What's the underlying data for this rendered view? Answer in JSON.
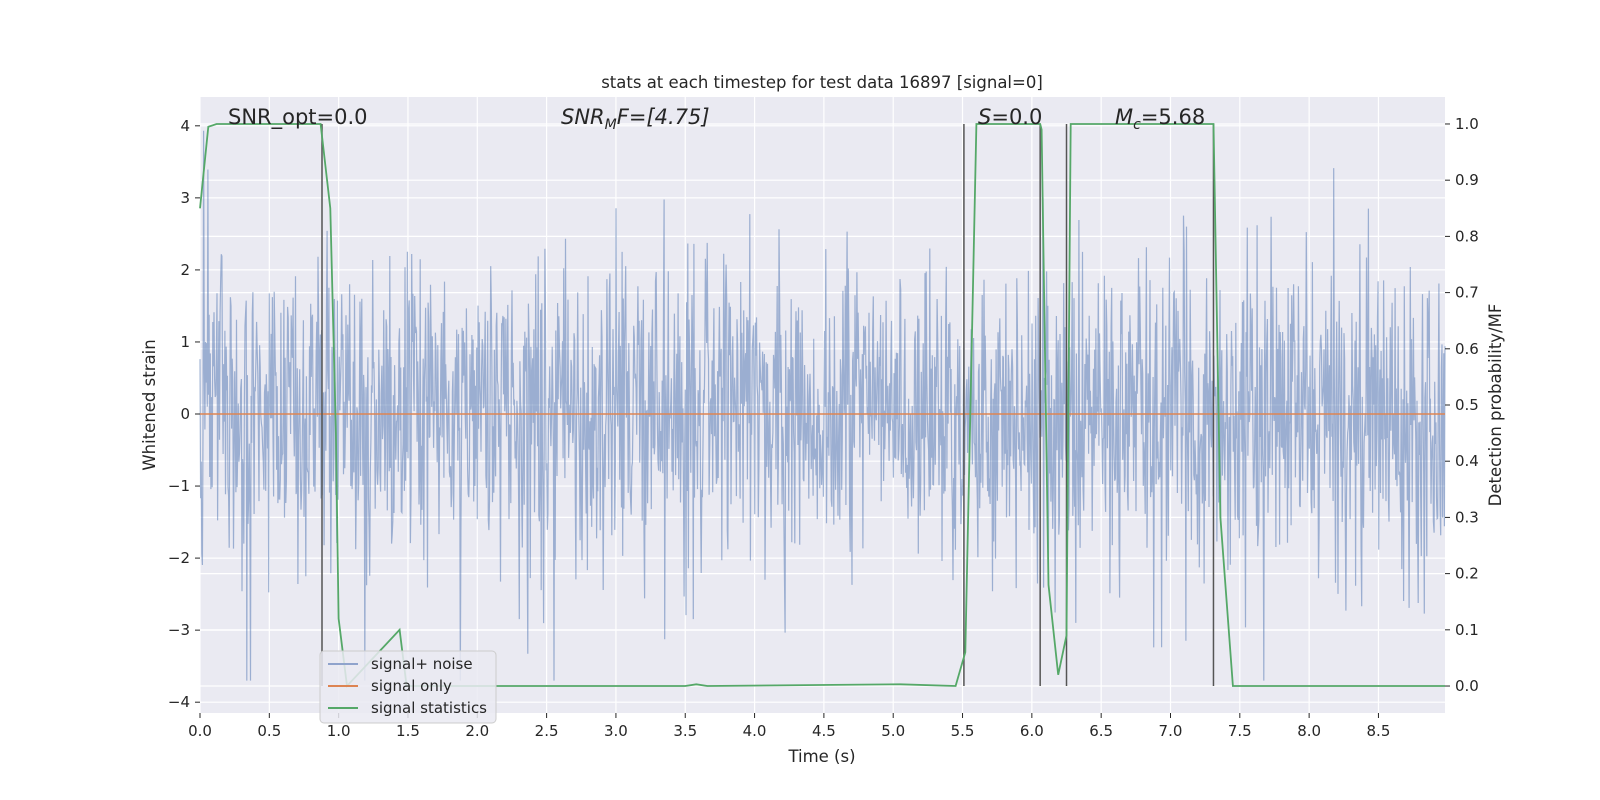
{
  "chart_data": {
    "type": "line",
    "title": "stats at each timestep for test data 16897 [signal=0]",
    "xlabel": "Time (s)",
    "ylabel_left": "Whitened strain",
    "ylabel_right": "Detection probability/MF",
    "xlim": [
      0.0,
      8.98
    ],
    "ylim_left": [
      -4.15,
      4.4
    ],
    "ylim_right": [
      -0.048,
      1.048
    ],
    "x_ticks": [
      0.0,
      0.5,
      1.0,
      1.5,
      2.0,
      2.5,
      3.0,
      3.5,
      4.0,
      4.5,
      5.0,
      5.5,
      6.0,
      6.5,
      7.0,
      7.5,
      8.0,
      8.5
    ],
    "x_tick_labels": [
      "0.0",
      "0.5",
      "1.0",
      "1.5",
      "2.0",
      "2.5",
      "3.0",
      "3.5",
      "4.0",
      "4.5",
      "5.0",
      "5.5",
      "6.0",
      "6.5",
      "7.0",
      "7.5",
      "8.0",
      "8.5"
    ],
    "y_left_ticks": [
      4,
      3,
      2,
      1,
      0,
      -1,
      -2,
      -3,
      -4
    ],
    "y_left_tick_labels": [
      "4",
      "3",
      "2",
      "1",
      "0",
      "−1",
      "−2",
      "−3",
      "−4"
    ],
    "y_right_ticks": [
      1.0,
      0.9,
      0.8,
      0.7,
      0.6,
      0.5,
      0.4,
      0.3,
      0.2,
      0.1,
      0.0
    ],
    "y_right_tick_labels": [
      "1.0",
      "0.9",
      "0.8",
      "0.7",
      "0.6",
      "0.5",
      "0.4",
      "0.3",
      "0.2",
      "0.1",
      "0.0"
    ],
    "grid": true,
    "legend": {
      "placement": "lower-left",
      "entries": [
        "signal+ noise",
        "signal only",
        "signal statistics"
      ]
    },
    "annotations": {
      "snr_opt": "SNR_opt=0.0",
      "snr_mf_base": "SNR",
      "snr_mf_sub": "M",
      "snr_mf_rest": "F=[4.75]",
      "s_var": "S",
      "s_rest": "=0.0",
      "mc_base": "M",
      "mc_sub": "c",
      "mc_rest": "=5.68"
    },
    "series": [
      {
        "name": "signal+ noise",
        "axis": "left",
        "color": "#4c72b0",
        "alpha": 0.5,
        "description_sample_count": 2048,
        "amplitude_envelope": [
          -3.7,
          4.0
        ]
      },
      {
        "name": "signal only",
        "axis": "left",
        "color": "#dd8452",
        "x": [
          0.0,
          8.98
        ],
        "y": [
          0.0,
          0.0
        ]
      },
      {
        "name": "signal statistics",
        "axis": "right",
        "color": "#55a868",
        "x": [
          0.0,
          0.06,
          0.12,
          0.87,
          0.94,
          0.98,
          1.0,
          1.06,
          1.44,
          1.49,
          3.5,
          3.58,
          3.66,
          5.05,
          5.45,
          5.52,
          5.6,
          6.06,
          6.07,
          6.12,
          6.19,
          6.25,
          6.28,
          6.32,
          7.31,
          7.36,
          7.45,
          8.98
        ],
        "y": [
          0.85,
          0.995,
          1.0,
          1.0,
          0.85,
          0.45,
          0.12,
          0.0,
          0.1,
          0.0,
          0.0,
          0.003,
          0.0,
          0.003,
          0.0,
          0.06,
          1.0,
          1.0,
          0.99,
          0.18,
          0.02,
          0.09,
          1.0,
          1.0,
          1.0,
          0.3,
          0.0,
          0.0
        ]
      }
    ],
    "vertical_lines": {
      "color": "#555555",
      "x": [
        0.88,
        5.51,
        6.06,
        6.25,
        7.31
      ],
      "range_right": [
        0.0,
        1.0
      ]
    }
  }
}
